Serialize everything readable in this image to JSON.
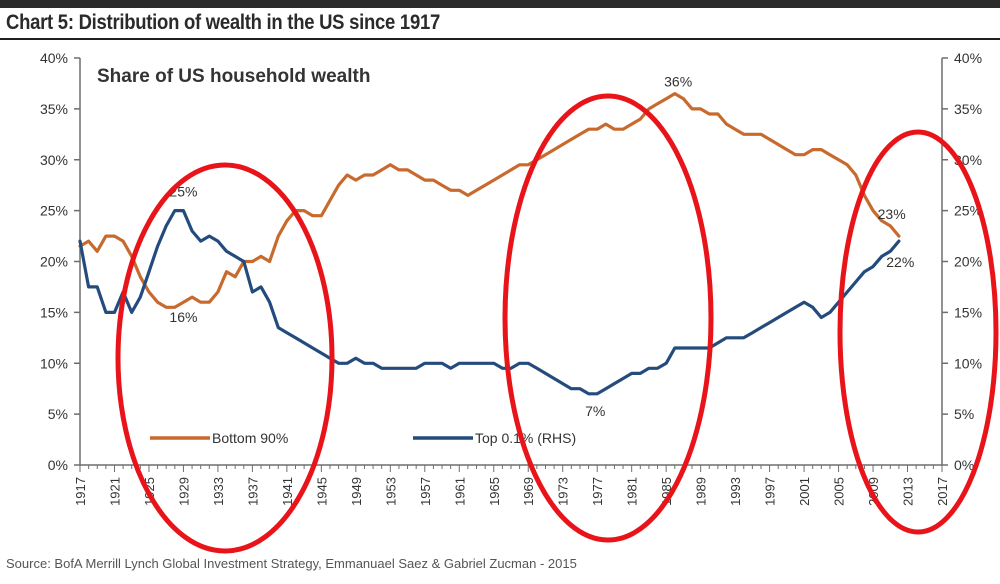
{
  "header": {
    "title": "Chart 5: Distribution of wealth in the US since 1917"
  },
  "footer": {
    "source": "Source: BofA Merrill Lynch Global Investment Strategy, Emmanuael Saez & Gabriel Zucman - 2015"
  },
  "chart_data": {
    "type": "line",
    "title": "Share of US household wealth",
    "xlabel": "",
    "ylabel": "",
    "xlim": [
      1917,
      2017
    ],
    "ylim": [
      0,
      40
    ],
    "y2lim": [
      0,
      40
    ],
    "yticks": [
      "0%",
      "5%",
      "10%",
      "15%",
      "20%",
      "25%",
      "30%",
      "35%",
      "40%"
    ],
    "y2ticks": [
      "0%",
      "5%",
      "10%",
      "15%",
      "20%",
      "25%",
      "30%",
      "35%",
      "40%"
    ],
    "xticks": [
      1917,
      1921,
      1925,
      1929,
      1933,
      1937,
      1941,
      1945,
      1949,
      1953,
      1957,
      1961,
      1965,
      1969,
      1973,
      1977,
      1981,
      1985,
      1989,
      1993,
      1997,
      2001,
      2005,
      2009,
      2013,
      2017
    ],
    "legend_position": "bottom-left",
    "series": [
      {
        "name": "Bottom 90%",
        "axis": "left",
        "color": "#c8692e",
        "x": [
          1917,
          1918,
          1919,
          1920,
          1921,
          1922,
          1923,
          1924,
          1925,
          1926,
          1927,
          1928,
          1929,
          1930,
          1931,
          1932,
          1933,
          1934,
          1935,
          1936,
          1937,
          1938,
          1939,
          1940,
          1941,
          1942,
          1943,
          1944,
          1945,
          1946,
          1947,
          1948,
          1949,
          1950,
          1951,
          1952,
          1953,
          1954,
          1955,
          1956,
          1957,
          1958,
          1959,
          1960,
          1961,
          1962,
          1963,
          1964,
          1965,
          1966,
          1967,
          1968,
          1969,
          1970,
          1971,
          1972,
          1973,
          1974,
          1975,
          1976,
          1977,
          1978,
          1979,
          1980,
          1981,
          1982,
          1983,
          1984,
          1985,
          1986,
          1987,
          1988,
          1989,
          1990,
          1991,
          1992,
          1993,
          1994,
          1995,
          1996,
          1997,
          1998,
          1999,
          2000,
          2001,
          2002,
          2003,
          2004,
          2005,
          2006,
          2007,
          2008,
          2009,
          2010,
          2011,
          2012
        ],
        "values": [
          21.5,
          22.0,
          21.0,
          22.5,
          22.5,
          22.0,
          20.5,
          18.5,
          17.0,
          16.0,
          15.5,
          15.5,
          16.0,
          16.5,
          16.0,
          16.0,
          17.0,
          19.0,
          18.5,
          20.0,
          20.0,
          20.5,
          20.0,
          22.5,
          24.0,
          25.0,
          25.0,
          24.5,
          24.5,
          26.0,
          27.5,
          28.5,
          28.0,
          28.5,
          28.5,
          29.0,
          29.5,
          29.0,
          29.0,
          28.5,
          28.0,
          28.0,
          27.5,
          27.0,
          27.0,
          26.5,
          27.0,
          27.5,
          28.0,
          28.5,
          29.0,
          29.5,
          29.5,
          30.0,
          30.5,
          31.0,
          31.5,
          32.0,
          32.5,
          33.0,
          33.0,
          33.5,
          33.0,
          33.0,
          33.5,
          34.0,
          35.0,
          35.5,
          36.0,
          36.5,
          36.0,
          35.0,
          35.0,
          34.5,
          34.5,
          33.5,
          33.0,
          32.5,
          32.5,
          32.5,
          32.0,
          31.5,
          31.0,
          30.5,
          30.5,
          31.0,
          31.0,
          30.5,
          30.0,
          29.5,
          28.5,
          26.5,
          25.0,
          24.0,
          23.5,
          22.5
        ]
      },
      {
        "name": "Top 0.1% (RHS)",
        "axis": "right",
        "color": "#244b7d",
        "x": [
          1917,
          1918,
          1919,
          1920,
          1921,
          1922,
          1923,
          1924,
          1925,
          1926,
          1927,
          1928,
          1929,
          1930,
          1931,
          1932,
          1933,
          1934,
          1935,
          1936,
          1937,
          1938,
          1939,
          1940,
          1941,
          1942,
          1943,
          1944,
          1945,
          1946,
          1947,
          1948,
          1949,
          1950,
          1951,
          1952,
          1953,
          1954,
          1955,
          1956,
          1957,
          1958,
          1959,
          1960,
          1961,
          1962,
          1963,
          1964,
          1965,
          1966,
          1967,
          1968,
          1969,
          1970,
          1971,
          1972,
          1973,
          1974,
          1975,
          1976,
          1977,
          1978,
          1979,
          1980,
          1981,
          1982,
          1983,
          1984,
          1985,
          1986,
          1987,
          1988,
          1989,
          1990,
          1991,
          1992,
          1993,
          1994,
          1995,
          1996,
          1997,
          1998,
          1999,
          2000,
          2001,
          2002,
          2003,
          2004,
          2005,
          2006,
          2007,
          2008,
          2009,
          2010,
          2011,
          2012
        ],
        "values": [
          22.0,
          17.5,
          17.5,
          15.0,
          15.0,
          17.0,
          15.0,
          16.5,
          19.0,
          21.5,
          23.5,
          25.0,
          25.0,
          23.0,
          22.0,
          22.5,
          22.0,
          21.0,
          20.5,
          20.0,
          17.0,
          17.5,
          16.0,
          13.5,
          13.0,
          12.5,
          12.0,
          11.5,
          11.0,
          10.5,
          10.0,
          10.0,
          10.5,
          10.0,
          10.0,
          9.5,
          9.5,
          9.5,
          9.5,
          9.5,
          10.0,
          10.0,
          10.0,
          9.5,
          10.0,
          10.0,
          10.0,
          10.0,
          10.0,
          9.5,
          9.5,
          10.0,
          10.0,
          9.5,
          9.0,
          8.5,
          8.0,
          7.5,
          7.5,
          7.0,
          7.0,
          7.5,
          8.0,
          8.5,
          9.0,
          9.0,
          9.5,
          9.5,
          10.0,
          11.5,
          11.5,
          11.5,
          11.5,
          11.5,
          12.0,
          12.5,
          12.5,
          12.5,
          13.0,
          13.5,
          14.0,
          14.5,
          15.0,
          15.5,
          16.0,
          15.5,
          14.5,
          15.0,
          16.0,
          17.0,
          18.0,
          19.0,
          19.5,
          20.5,
          21.0,
          22.0
        ]
      }
    ],
    "annotations": [
      {
        "text": "25%",
        "x": 1929,
        "y": 25,
        "series": "Top 0.1% (RHS)"
      },
      {
        "text": "16%",
        "x": 1929,
        "y": 16,
        "series": "Bottom 90%"
      },
      {
        "text": "36%",
        "x": 1985,
        "y": 36,
        "series": "Bottom 90%"
      },
      {
        "text": "7%",
        "x": 1977,
        "y": 7,
        "series": "Top 0.1% (RHS)"
      },
      {
        "text": "23%",
        "x": 2010,
        "y": 23,
        "series": "Bottom 90%"
      },
      {
        "text": "22%",
        "x": 2011,
        "y": 22,
        "series": "Top 0.1% (RHS)"
      }
    ],
    "highlight_color": "#e8141a"
  }
}
